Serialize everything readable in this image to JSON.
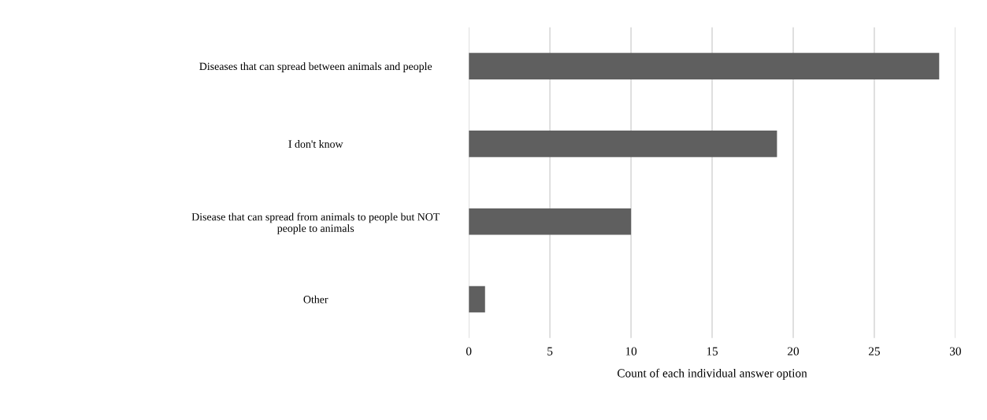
{
  "chart_data": {
    "type": "bar",
    "orientation": "horizontal",
    "categories": [
      "Diseases that can spread between animals and people",
      "I don't know",
      "Disease that can spread from animals to people but NOT\npeople to animals",
      "Other"
    ],
    "values": [
      29,
      19,
      10,
      1
    ],
    "color": "#5f5f5f",
    "xlabel": "Count of each individual answer option",
    "xlim": [
      0,
      30
    ],
    "xticks": [
      0,
      5,
      10,
      15,
      20,
      25,
      30
    ],
    "grid": "x",
    "legend": false
  }
}
